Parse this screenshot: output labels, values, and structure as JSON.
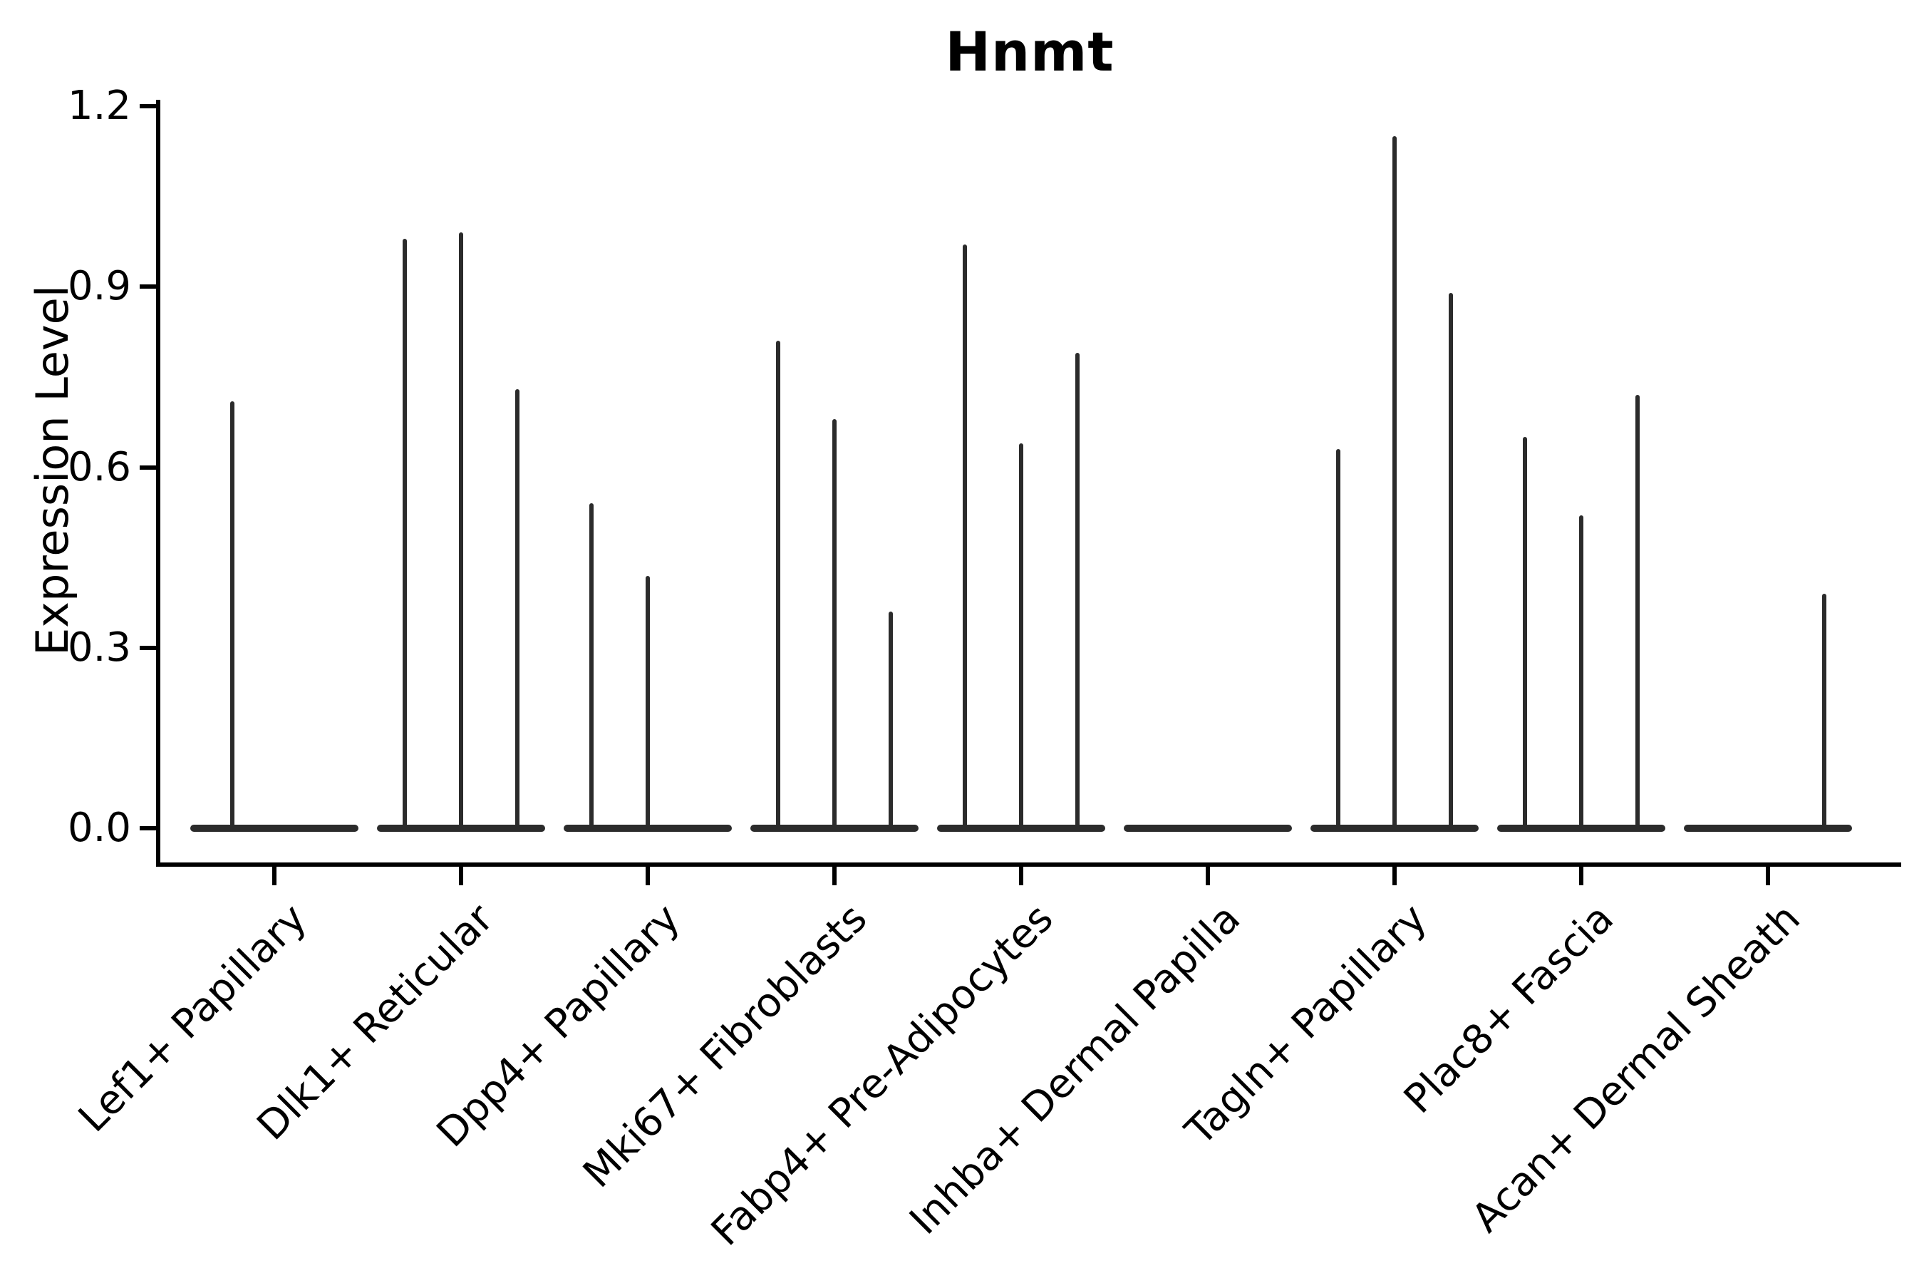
{
  "chart_data": {
    "type": "violin",
    "title": "Hnmt",
    "xlabel": "",
    "ylabel": "Expression Level",
    "ylim": [
      0,
      1.2
    ],
    "grid": false,
    "legend": "none",
    "yticks": [
      {
        "value": 0.0,
        "label": "0.0"
      },
      {
        "value": 0.3,
        "label": "0.3"
      },
      {
        "value": 0.6,
        "label": "0.6"
      },
      {
        "value": 0.9,
        "label": "0.9"
      },
      {
        "value": 1.2,
        "label": "1.2"
      }
    ],
    "categories": [
      "Lef1+ Papillary",
      "Dlk1+ Reticular",
      "Dpp4+ Papillary",
      "Mki67+ Fibroblasts",
      "Fabp4+ Pre-Adipocytes",
      "Inhba+ Dermal Papilla",
      "Tagln+ Papillary",
      "Plac8+ Fascia",
      "Acan+ Dermal Sheath"
    ],
    "groups": [
      {
        "category": "Lef1+ Papillary",
        "violins": [
          {
            "slot": -0.75,
            "max": 0.71
          },
          {
            "slot": 0.75,
            "max": 0.0
          }
        ]
      },
      {
        "category": "Dlk1+ Reticular",
        "violins": [
          {
            "slot": -1,
            "max": 0.98
          },
          {
            "slot": 0,
            "max": 0.99
          },
          {
            "slot": 1,
            "max": 0.73
          }
        ]
      },
      {
        "category": "Dpp4+ Papillary",
        "violins": [
          {
            "slot": -1,
            "max": 0.54
          },
          {
            "slot": 0,
            "max": 0.42
          },
          {
            "slot": 1,
            "max": 0.0
          }
        ]
      },
      {
        "category": "Mki67+ Fibroblasts",
        "violins": [
          {
            "slot": -1,
            "max": 0.81
          },
          {
            "slot": 0,
            "max": 0.68
          },
          {
            "slot": 1,
            "max": 0.36
          }
        ]
      },
      {
        "category": "Fabp4+ Pre-Adipocytes",
        "violins": [
          {
            "slot": -1,
            "max": 0.97
          },
          {
            "slot": 0,
            "max": 0.64
          },
          {
            "slot": 1,
            "max": 0.79
          }
        ]
      },
      {
        "category": "Inhba+ Dermal Papilla",
        "violins": [
          {
            "slot": -1,
            "max": 0.0
          },
          {
            "slot": 0,
            "max": 0.0
          },
          {
            "slot": 1,
            "max": 0.0
          }
        ]
      },
      {
        "category": "Tagln+ Papillary",
        "violins": [
          {
            "slot": -1,
            "max": 0.63
          },
          {
            "slot": 0,
            "max": 1.15
          },
          {
            "slot": 1,
            "max": 0.89
          }
        ]
      },
      {
        "category": "Plac8+ Fascia",
        "violins": [
          {
            "slot": -1,
            "max": 0.65
          },
          {
            "slot": 0,
            "max": 0.52
          },
          {
            "slot": 1,
            "max": 0.72
          }
        ]
      },
      {
        "category": "Acan+ Dermal Sheath",
        "violins": [
          {
            "slot": -1,
            "max": 0.0
          },
          {
            "slot": 0,
            "max": 0.0
          },
          {
            "slot": 1,
            "max": 0.39
          }
        ]
      }
    ],
    "colors": {
      "stroke": "#2b2b2b",
      "axis": "#000000",
      "text": "#000000",
      "background": "#ffffff"
    }
  }
}
